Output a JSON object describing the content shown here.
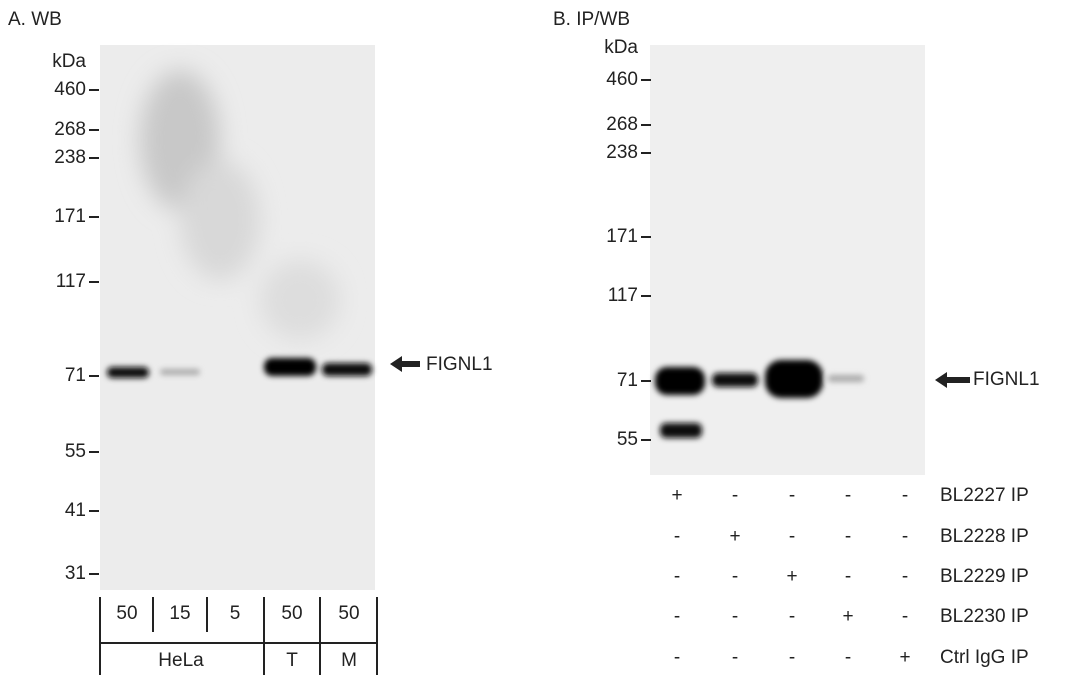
{
  "panel_a": {
    "title": "A. WB",
    "unit": "kDa",
    "markers": [
      "460",
      "268",
      "238",
      "171",
      "117",
      "71",
      "55",
      "41",
      "31"
    ],
    "lane_loads": [
      "50",
      "15",
      "5",
      "50",
      "50"
    ],
    "groups": [
      "HeLa",
      "T",
      "M"
    ],
    "target": "FIGNL1"
  },
  "panel_b": {
    "title": "B. IP/WB",
    "unit": "kDa",
    "markers": [
      "460",
      "268",
      "238",
      "171",
      "117",
      "71",
      "55"
    ],
    "target": "FIGNL1",
    "ip_rows": [
      {
        "label": "BL2227 IP",
        "lanes": [
          "+",
          "-",
          "-",
          "-",
          "-"
        ]
      },
      {
        "label": "BL2228 IP",
        "lanes": [
          "-",
          "+",
          "-",
          "-",
          "-"
        ]
      },
      {
        "label": "BL2229 IP",
        "lanes": [
          "-",
          "-",
          "+",
          "-",
          "-"
        ]
      },
      {
        "label": "BL2230 IP",
        "lanes": [
          "-",
          "-",
          "-",
          "+",
          "-"
        ]
      },
      {
        "label": "Ctrl IgG IP",
        "lanes": [
          "-",
          "-",
          "-",
          "-",
          "+"
        ]
      }
    ]
  }
}
